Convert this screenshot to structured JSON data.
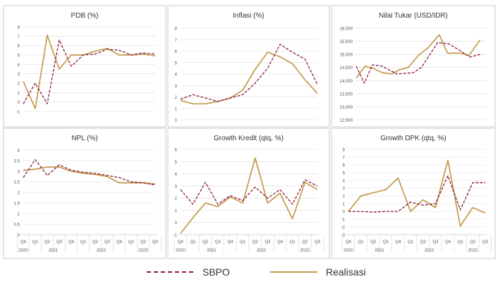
{
  "colors": {
    "sbpo": "#8b1a3a",
    "realisasi": "#c49a4a",
    "border": "#c8c8c8",
    "grid": "#d9d9d9",
    "axis_text": "#555555",
    "title_text": "#333333"
  },
  "legend": {
    "sbpo_label": "SBPO",
    "realisasi_label": "Realisasi"
  },
  "categories": [
    "Q4",
    "Q1",
    "Q2",
    "Q3",
    "Q4",
    "Q1",
    "Q2",
    "Q3",
    "Q4",
    "Q1",
    "Q2",
    "Q3"
  ],
  "year_groups": [
    {
      "label": "2020",
      "from": 0,
      "to": 0
    },
    {
      "label": "2021",
      "from": 1,
      "to": 4
    },
    {
      "label": "2022",
      "from": 5,
      "to": 8
    },
    {
      "label": "2023",
      "from": 9,
      "to": 11
    }
  ],
  "chart_data": [
    {
      "type": "line",
      "title": "PDB (%)",
      "ylim": [
        -1,
        8
      ],
      "yticks": [
        -1,
        0,
        1,
        2,
        3,
        4,
        5,
        6,
        7,
        8
      ],
      "ytick_labels": [
        "-1",
        "0",
        "1",
        "2",
        "3",
        "4",
        "5",
        "6",
        "7",
        "8"
      ],
      "x_count": 12,
      "sbpo": [
        -0.2,
        2.0,
        -0.2,
        6.6,
        3.8,
        5.0,
        5.1,
        5.6,
        5.5,
        5.0,
        5.2,
        5.1
      ],
      "realisasi": [
        2.2,
        -0.7,
        7.1,
        3.5,
        5.0,
        5.0,
        5.4,
        5.7,
        5.0,
        5.0,
        5.1,
        4.9
      ]
    },
    {
      "type": "line",
      "title": "Inflasi (%)",
      "ylim": [
        0,
        8
      ],
      "yticks": [
        0,
        1,
        2,
        3,
        4,
        5,
        6,
        7,
        8
      ],
      "ytick_labels": [
        "0",
        "1",
        "2",
        "3",
        "4",
        "5",
        "6",
        "7",
        "8"
      ],
      "x_count": 12,
      "sbpo": [
        1.8,
        2.2,
        1.9,
        1.6,
        1.9,
        2.2,
        3.2,
        4.5,
        6.6,
        5.9,
        5.3,
        3.1
      ],
      "realisasi": [
        1.7,
        1.4,
        1.4,
        1.6,
        1.9,
        2.6,
        4.4,
        5.9,
        5.5,
        4.9,
        3.5,
        2.3
      ]
    },
    {
      "type": "line",
      "title": "Nilai Tukar (USD/IDR)",
      "ylim": [
        12500,
        16000
      ],
      "yticks": [
        12500,
        13000,
        13500,
        14000,
        14500,
        15000,
        15500,
        16000
      ],
      "ytick_labels": [
        "12,500",
        "13,000",
        "13,500",
        "14,000",
        "14,500",
        "15,000",
        "15,500",
        "16,000"
      ],
      "x_count": 9,
      "sbpo": [
        14550,
        13900,
        14600,
        14550,
        14250,
        14300,
        14500,
        15450,
        15400,
        14900,
        15000
      ],
      "realisasi": [
        14100,
        14550,
        14450,
        14300,
        14250,
        14400,
        14500,
        14950,
        15250,
        15750,
        15050,
        15050,
        14950,
        15550
      ],
      "sbpo_x": [
        0,
        0.5,
        1,
        1.6,
        2.5,
        3.5,
        4,
        5,
        5.7,
        7,
        7.6
      ],
      "realisasi_x": [
        0,
        0.55,
        1.1,
        1.6,
        2.2,
        2.6,
        3.2,
        3.8,
        4.4,
        5.1,
        5.6,
        6.4,
        6.9,
        7.6
      ]
    },
    {
      "type": "line",
      "title": "NPL (%)",
      "ylim": [
        0,
        4
      ],
      "yticks": [
        0,
        0.5,
        1,
        1.5,
        2,
        2.5,
        3,
        3.5,
        4
      ],
      "ytick_labels": [
        "0",
        "0.5",
        "1",
        "1.5",
        "2",
        "2.5",
        "3",
        "3.5",
        "4"
      ],
      "x_count": 12,
      "sbpo": [
        2.7,
        3.55,
        2.8,
        3.3,
        3.05,
        2.95,
        2.9,
        2.8,
        2.7,
        2.5,
        2.45,
        2.35
      ],
      "realisasi": [
        3.05,
        3.1,
        3.2,
        3.2,
        3.0,
        2.9,
        2.85,
        2.75,
        2.45,
        2.45,
        2.45,
        2.4
      ]
    },
    {
      "type": "line",
      "title": "Growth Kredit (qtq, %)",
      "ylim": [
        -1,
        6
      ],
      "yticks": [
        -1,
        0,
        1,
        2,
        3,
        4,
        5,
        6
      ],
      "ytick_labels": [
        "-1",
        "0",
        "1",
        "2",
        "3",
        "4",
        "5",
        "6"
      ],
      "x_count": 12,
      "sbpo": [
        2.7,
        1.5,
        3.3,
        1.5,
        2.2,
        1.8,
        2.9,
        2.0,
        2.7,
        1.5,
        3.5,
        3.0
      ],
      "realisasi": [
        -0.9,
        0.4,
        1.6,
        1.3,
        2.1,
        1.6,
        5.3,
        1.6,
        2.4,
        0.3,
        3.3,
        2.7
      ]
    },
    {
      "type": "line",
      "title": "Growth DPK (qtq, %)",
      "ylim": [
        -3,
        8
      ],
      "yticks": [
        -3,
        -2,
        -1,
        0,
        1,
        2,
        3,
        4,
        5,
        6,
        7,
        8
      ],
      "ytick_labels": [
        "-3",
        "-2",
        "-1",
        "0",
        "1",
        "2",
        "3",
        "4",
        "5",
        "6",
        "7",
        "8"
      ],
      "x_count": 12,
      "sbpo": [
        0.0,
        0.0,
        -0.1,
        0.0,
        0.0,
        1.2,
        0.8,
        1.0,
        4.6,
        0.2,
        3.7,
        3.7
      ],
      "realisasi": [
        0.0,
        2.0,
        2.4,
        2.8,
        4.3,
        0.0,
        1.5,
        0.5,
        6.6,
        -1.9,
        0.5,
        -0.2
      ]
    }
  ]
}
